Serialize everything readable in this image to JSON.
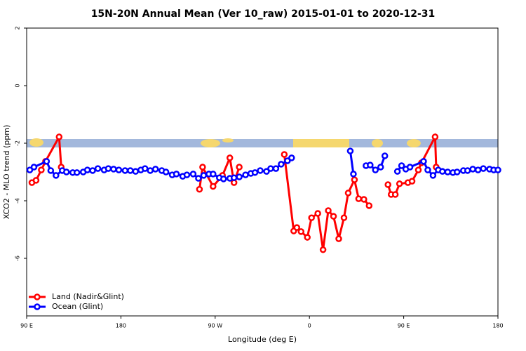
{
  "chart_data": {
    "type": "line",
    "title": "15N-20N Annual Mean (Ver 10_raw)   2015-01-01 to 2020-12-31",
    "x_label": "Longitude (deg E)",
    "y_label": "XCO2 - MLO trend (ppm)",
    "xlim": [
      90,
      540
    ],
    "ylim": [
      -8,
      2
    ],
    "xticks": [
      {
        "value": 90,
        "label": "90 E"
      },
      180,
      {
        "value": 270,
        "label": "90 W"
      },
      {
        "value": 360,
        "label": "0"
      },
      {
        "value": 450,
        "label": "90 E"
      },
      {
        "value": 540,
        "label": "180"
      }
    ],
    "yticks": [
      2,
      0,
      -2,
      -4,
      -6
    ],
    "legend": "bottom-left",
    "series": [
      {
        "name": "Land (Nadir&Glint)",
        "color": "#ff0000",
        "x": [
          95,
          99,
          104,
          108,
          121,
          123,
          190,
          255,
          258,
          268,
          277,
          284,
          288,
          293,
          315,
          336,
          345,
          348,
          352,
          358,
          362,
          368,
          373,
          378,
          383,
          388,
          393,
          397,
          403,
          407,
          412,
          417,
          425,
          435,
          438,
          442,
          446,
          454,
          458,
          464,
          467,
          480,
          481
        ],
        "values": [
          -3.37,
          -3.29,
          -2.93,
          -2.63,
          -1.78,
          -2.83,
          null,
          -3.6,
          -2.83,
          -3.5,
          -3.12,
          -2.51,
          -3.37,
          -2.83,
          null,
          -2.39,
          -5.05,
          -4.93,
          -5.07,
          -5.27,
          -4.59,
          -4.44,
          -5.7,
          -4.34,
          -4.54,
          -5.32,
          -4.59,
          -3.73,
          -3.27,
          -3.93,
          -3.95,
          -4.17,
          null,
          -3.44,
          -3.78,
          -3.78,
          -3.41,
          -3.37,
          -3.32,
          -2.93,
          -2.68,
          -1.78,
          -2.83
        ]
      },
      {
        "name": "Ocean (Glint)",
        "color": "#0000ff",
        "x": [
          93,
          97,
          109,
          113,
          118,
          124,
          128,
          134,
          138,
          144,
          148,
          153,
          158,
          164,
          168,
          173,
          178,
          184,
          189,
          194,
          199,
          203,
          208,
          213,
          219,
          223,
          229,
          233,
          239,
          243,
          249,
          254,
          259,
          264,
          268,
          274,
          278,
          284,
          288,
          293,
          299,
          304,
          308,
          313,
          319,
          323,
          328,
          333,
          339,
          343,
          370,
          399,
          402,
          408,
          414,
          418,
          423,
          428,
          432,
          438,
          444,
          448,
          452,
          456,
          469,
          473,
          478,
          483,
          487,
          492,
          497,
          501,
          507,
          511,
          516,
          521,
          526,
          532,
          536,
          540
        ],
        "values": [
          -2.93,
          -2.83,
          -2.63,
          -2.95,
          -3.12,
          -2.95,
          -3.0,
          -3.02,
          -3.02,
          -3.0,
          -2.93,
          -2.95,
          -2.88,
          -2.93,
          -2.88,
          -2.9,
          -2.93,
          -2.95,
          -2.95,
          -2.98,
          -2.93,
          -2.88,
          -2.95,
          -2.9,
          -2.95,
          -3.0,
          -3.1,
          -3.07,
          -3.15,
          -3.1,
          -3.07,
          -3.22,
          -3.12,
          -3.07,
          -3.07,
          -3.2,
          -3.24,
          -3.22,
          -3.2,
          -3.17,
          -3.1,
          -3.05,
          -3.02,
          -2.95,
          -2.98,
          -2.88,
          -2.88,
          -2.73,
          -2.61,
          -2.51,
          null,
          -2.27,
          -3.07,
          null,
          -2.78,
          -2.76,
          -2.93,
          -2.83,
          -2.44,
          null,
          -2.98,
          -2.78,
          -2.9,
          -2.83,
          -2.63,
          -2.93,
          -3.12,
          -2.93,
          -2.98,
          -3.0,
          -3.02,
          -3.0,
          -2.95,
          -2.95,
          -2.9,
          -2.93,
          -2.88,
          -2.9,
          -2.93,
          -2.93
        ]
      }
    ]
  }
}
